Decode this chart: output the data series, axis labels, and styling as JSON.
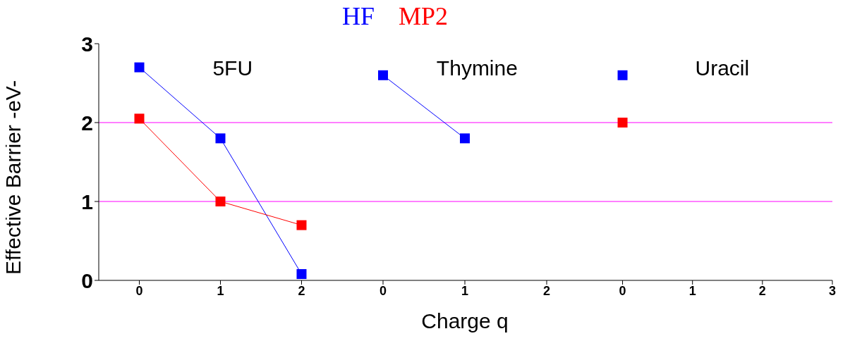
{
  "chart_data": [
    {
      "type": "line",
      "x": [
        0,
        1,
        2
      ],
      "xlim": [
        -0.5,
        2.5
      ],
      "xticks": [
        0,
        1,
        2
      ],
      "ylim": [
        0,
        3
      ],
      "yticks": [
        0,
        1,
        2,
        3
      ],
      "ylabel": "Effective Barrier -eV-",
      "marker": "square",
      "grid": false,
      "legend": "top",
      "annotations": [
        "5FU"
      ],
      "ref_lines": [
        {
          "axis": "y",
          "value": 1,
          "color": "#ff00ff"
        },
        {
          "axis": "y",
          "value": 2,
          "color": "#ff00ff"
        }
      ],
      "series": [
        {
          "name": "HF",
          "color": "#0000ff",
          "values": [
            2.7,
            1.8,
            0.08
          ]
        },
        {
          "name": "MP2",
          "color": "#ff0000",
          "values": [
            2.05,
            1.0,
            0.7
          ]
        }
      ]
    },
    {
      "type": "line",
      "x": [
        0,
        1
      ],
      "xlim": [
        -0.5,
        2.5
      ],
      "xticks": [
        0,
        1,
        2
      ],
      "ylim": [
        0,
        3
      ],
      "tick_labels": "x",
      "xlabel": "Charge q",
      "marker": "square",
      "grid": false,
      "annotations": [
        "Thymine"
      ],
      "ref_lines": [
        {
          "axis": "y",
          "value": 1,
          "color": "#ff00ff"
        },
        {
          "axis": "y",
          "value": 2,
          "color": "#ff00ff"
        }
      ],
      "series": [
        {
          "color": "#0000ff",
          "values": [
            2.6,
            1.8
          ]
        }
      ]
    },
    {
      "type": "line",
      "x": [
        0
      ],
      "xlim": [
        -0.5,
        3
      ],
      "xticks": [
        0,
        1,
        2,
        3
      ],
      "ylim": [
        0,
        3
      ],
      "tick_labels": "x",
      "marker": "square",
      "grid": false,
      "annotations": [
        "Uracil"
      ],
      "ref_lines": [
        {
          "axis": "y",
          "value": 1,
          "color": "#ff00ff"
        },
        {
          "axis": "y",
          "value": 2,
          "color": "#ff00ff"
        }
      ],
      "series": [
        {
          "color": "#0000ff",
          "values": [
            2.6
          ]
        },
        {
          "color": "#ff0000",
          "values": [
            2.0
          ]
        }
      ]
    }
  ]
}
